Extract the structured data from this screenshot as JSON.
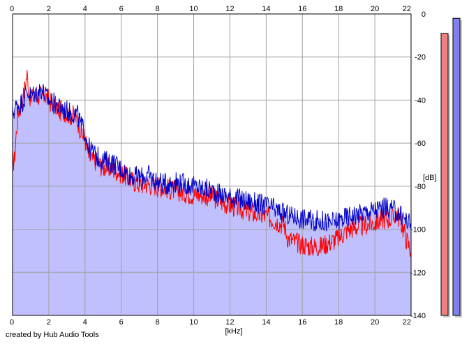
{
  "chart_data": {
    "type": "area",
    "x_unit_label": "[kHz]",
    "y_unit_label": "[dB]",
    "xlim": [
      0,
      22
    ],
    "ylim": [
      -140,
      0
    ],
    "x_ticks": [
      0,
      2,
      4,
      6,
      8,
      10,
      12,
      14,
      16,
      18,
      20,
      22
    ],
    "y_ticks": [
      0,
      -20,
      -40,
      -60,
      -80,
      -100,
      -120,
      -140
    ],
    "y_tick_labels": [
      "0",
      "-20",
      "-40",
      "-60",
      "-80",
      "-100",
      "-120",
      "-140"
    ],
    "grid": true,
    "series": [
      {
        "color": "#ff0000",
        "points": [
          [
            0.0,
            -69
          ],
          [
            0.1,
            -68
          ],
          [
            0.2,
            -56
          ],
          [
            0.3,
            -46
          ],
          [
            0.4,
            -44
          ],
          [
            0.5,
            -42
          ],
          [
            0.6,
            -38
          ],
          [
            0.7,
            -33
          ],
          [
            0.8,
            -28
          ],
          [
            0.9,
            -35
          ],
          [
            1.0,
            -40
          ],
          [
            1.2,
            -38
          ],
          [
            1.4,
            -38
          ],
          [
            1.6,
            -38
          ],
          [
            1.8,
            -38
          ],
          [
            2.0,
            -40
          ],
          [
            2.2,
            -42
          ],
          [
            2.4,
            -43
          ],
          [
            2.6,
            -45
          ],
          [
            2.8,
            -45
          ],
          [
            3.0,
            -46
          ],
          [
            3.2,
            -47
          ],
          [
            3.4,
            -47
          ],
          [
            3.6,
            -50
          ],
          [
            3.8,
            -55
          ],
          [
            4.0,
            -58
          ],
          [
            4.2,
            -66
          ],
          [
            4.4,
            -68
          ],
          [
            4.6,
            -68
          ],
          [
            4.8,
            -70
          ],
          [
            5.0,
            -71
          ],
          [
            5.5,
            -72
          ],
          [
            6.0,
            -74
          ],
          [
            6.5,
            -77
          ],
          [
            7.0,
            -79
          ],
          [
            7.5,
            -79
          ],
          [
            8.0,
            -80
          ],
          [
            8.5,
            -81
          ],
          [
            9.0,
            -82
          ],
          [
            9.5,
            -83
          ],
          [
            10.0,
            -84
          ],
          [
            10.5,
            -84
          ],
          [
            11.0,
            -85
          ],
          [
            11.5,
            -87
          ],
          [
            12.0,
            -89
          ],
          [
            12.5,
            -90
          ],
          [
            13.0,
            -92
          ],
          [
            13.5,
            -93
          ],
          [
            14.0,
            -94
          ],
          [
            14.5,
            -96
          ],
          [
            15.0,
            -98
          ],
          [
            15.2,
            -104
          ],
          [
            15.4,
            -105
          ],
          [
            15.6,
            -106
          ],
          [
            16.0,
            -107
          ],
          [
            16.5,
            -108
          ],
          [
            17.0,
            -108
          ],
          [
            17.5,
            -106
          ],
          [
            18.0,
            -104
          ],
          [
            18.5,
            -100
          ],
          [
            19.0,
            -99
          ],
          [
            19.5,
            -98
          ],
          [
            20.0,
            -97
          ],
          [
            20.5,
            -95
          ],
          [
            21.0,
            -95
          ],
          [
            21.2,
            -92
          ],
          [
            21.5,
            -98
          ],
          [
            21.8,
            -106
          ],
          [
            22.0,
            -110
          ]
        ]
      },
      {
        "color": "#0000c8",
        "points": [
          [
            0.0,
            -46
          ],
          [
            0.2,
            -43
          ],
          [
            0.4,
            -42
          ],
          [
            0.6,
            -40
          ],
          [
            0.8,
            -36
          ],
          [
            1.0,
            -38
          ],
          [
            1.2,
            -37
          ],
          [
            1.4,
            -36
          ],
          [
            1.6,
            -35
          ],
          [
            1.8,
            -38
          ],
          [
            2.0,
            -40
          ],
          [
            2.2,
            -41
          ],
          [
            2.4,
            -42
          ],
          [
            2.6,
            -44
          ],
          [
            2.8,
            -44
          ],
          [
            3.0,
            -45
          ],
          [
            3.2,
            -46
          ],
          [
            3.4,
            -46
          ],
          [
            3.6,
            -47
          ],
          [
            3.8,
            -52
          ],
          [
            4.0,
            -55
          ],
          [
            4.2,
            -62
          ],
          [
            4.4,
            -64
          ],
          [
            4.6,
            -66
          ],
          [
            4.8,
            -67
          ],
          [
            5.0,
            -68
          ],
          [
            5.5,
            -69
          ],
          [
            6.0,
            -72
          ],
          [
            6.5,
            -75
          ],
          [
            7.0,
            -76
          ],
          [
            7.5,
            -75
          ],
          [
            8.0,
            -78
          ],
          [
            8.5,
            -79
          ],
          [
            9.0,
            -78
          ],
          [
            9.5,
            -79
          ],
          [
            10.0,
            -80
          ],
          [
            10.5,
            -81
          ],
          [
            11.0,
            -82
          ],
          [
            11.5,
            -84
          ],
          [
            12.0,
            -85
          ],
          [
            12.5,
            -86
          ],
          [
            13.0,
            -87
          ],
          [
            13.5,
            -88
          ],
          [
            14.0,
            -89
          ],
          [
            14.5,
            -91
          ],
          [
            15.0,
            -93
          ],
          [
            15.5,
            -94
          ],
          [
            16.0,
            -95
          ],
          [
            16.5,
            -96
          ],
          [
            17.0,
            -96
          ],
          [
            17.5,
            -97
          ],
          [
            18.0,
            -96
          ],
          [
            18.5,
            -94
          ],
          [
            19.0,
            -93
          ],
          [
            19.5,
            -92
          ],
          [
            20.0,
            -91
          ],
          [
            20.5,
            -90
          ],
          [
            21.0,
            -91
          ],
          [
            21.5,
            -94
          ],
          [
            22.0,
            -98
          ]
        ]
      }
    ],
    "level_meters": [
      {
        "color": "#f08080",
        "level_db": -9
      },
      {
        "color": "#8080f0",
        "level_db": -2
      }
    ]
  },
  "footer": {
    "credit": "created by Hub Audio Tools"
  },
  "colors": {
    "area_fill": "#c0c0ff",
    "plot_background": "#ffffff",
    "grid": "#a0a0a0",
    "axis": "#000000"
  }
}
